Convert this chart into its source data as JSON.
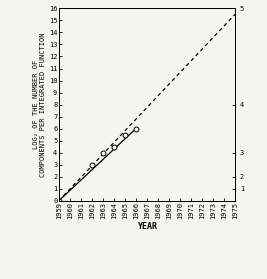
{
  "title": "",
  "xlabel": "YEAR",
  "ylabel": "LOG₂ OF THE NUMBER OF\nCOMPONENTS PER INTEGRATED FUNCTION",
  "xlim": [
    1959,
    1975
  ],
  "ylim": [
    0,
    16
  ],
  "yticks_left": [
    0,
    1,
    2,
    3,
    4,
    5,
    6,
    7,
    8,
    9,
    10,
    11,
    12,
    13,
    14,
    15,
    16
  ],
  "xticks": [
    1959,
    1960,
    1961,
    1962,
    1963,
    1964,
    1965,
    1966,
    1967,
    1968,
    1969,
    1970,
    1971,
    1972,
    1973,
    1974,
    1975
  ],
  "right_ytick_labels": [
    "1",
    "2",
    "3",
    "4",
    "5"
  ],
  "right_ytick_positions": [
    1,
    2,
    4,
    8,
    16
  ],
  "data_points_x": [
    1959,
    1962,
    1963,
    1964,
    1965,
    1966
  ],
  "data_points_y": [
    0,
    3,
    4,
    4.5,
    5.5,
    6
  ],
  "solid_line_x": [
    1959,
    1966
  ],
  "solid_line_y": [
    0,
    6
  ],
  "dashed_line_x": [
    1959,
    1975
  ],
  "dashed_line_y": [
    0,
    15.5
  ],
  "line_color": "#000000",
  "bg_color": "#f5f5f0",
  "marker": "o",
  "marker_size": 3.5,
  "marker_facecolor": "white",
  "marker_edgecolor": "black"
}
